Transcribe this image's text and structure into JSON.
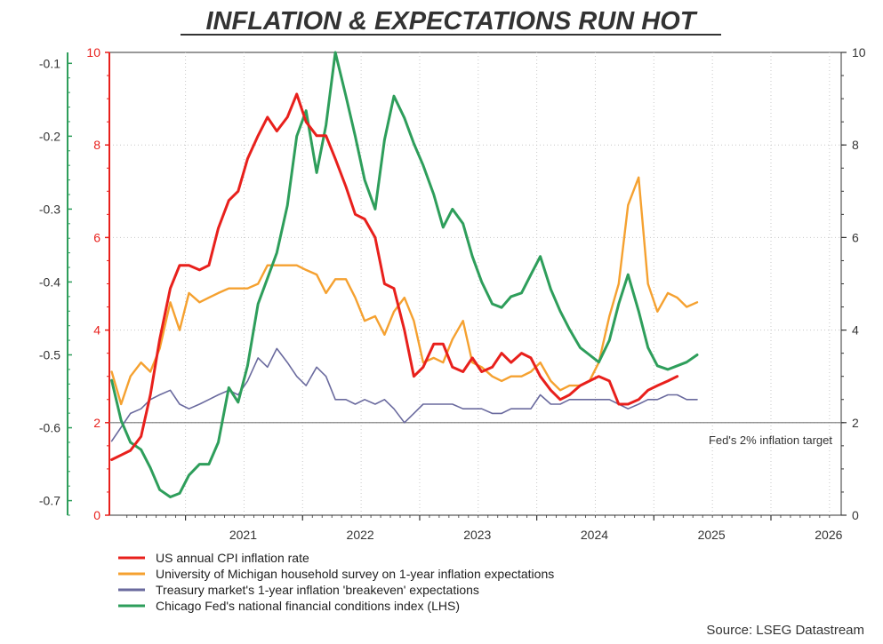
{
  "chart_data": {
    "type": "line",
    "title": "INFLATION & EXPECTATIONS RUN HOT",
    "source": "Source: LSEG Datastream",
    "annotation": "Fed's 2% inflation target",
    "target_line_value": 2,
    "grid": true,
    "legend_position": "bottom-left",
    "x_axis": {
      "range": [
        2020.35,
        2026.6
      ],
      "tick_labels": [
        "2021",
        "2022",
        "2023",
        "2024",
        "2025",
        "2026"
      ],
      "tick_values": [
        2021,
        2022,
        2023,
        2024,
        2025,
        2026
      ]
    },
    "y_left_red": {
      "range": [
        0,
        10
      ],
      "ticks": [
        0,
        2,
        4,
        6,
        8,
        10
      ],
      "color": "#e8201c"
    },
    "y_left_green": {
      "range": [
        -0.72,
        -0.085
      ],
      "ticks": [
        -0.7,
        -0.6,
        -0.5,
        -0.4,
        -0.3,
        -0.2,
        -0.1
      ],
      "tick_labels": [
        "-0.7",
        "-0.6",
        "-0.5",
        "-0.4",
        "-0.3",
        "-0.2",
        "-0.1"
      ],
      "color": "#2e9e5b"
    },
    "y_right": {
      "range": [
        0,
        10
      ],
      "ticks": [
        0,
        2,
        4,
        6,
        8,
        10
      ]
    },
    "series": [
      {
        "name": "US annual CPI inflation rate",
        "color": "#e8201c",
        "axis": "y_left_red",
        "points": [
          [
            2020.37,
            1.2
          ],
          [
            2020.45,
            1.3
          ],
          [
            2020.53,
            1.4
          ],
          [
            2020.62,
            1.7
          ],
          [
            2020.7,
            2.6
          ],
          [
            2020.78,
            3.8
          ],
          [
            2020.87,
            4.9
          ],
          [
            2020.95,
            5.4
          ],
          [
            2021.03,
            5.4
          ],
          [
            2021.12,
            5.3
          ],
          [
            2021.2,
            5.4
          ],
          [
            2021.28,
            6.2
          ],
          [
            2021.37,
            6.8
          ],
          [
            2021.45,
            7.0
          ],
          [
            2021.53,
            7.7
          ],
          [
            2021.62,
            8.2
          ],
          [
            2021.7,
            8.6
          ],
          [
            2021.78,
            8.3
          ],
          [
            2021.87,
            8.6
          ],
          [
            2021.95,
            9.1
          ],
          [
            2022.03,
            8.5
          ],
          [
            2022.12,
            8.2
          ],
          [
            2022.2,
            8.2
          ],
          [
            2022.28,
            7.7
          ],
          [
            2022.37,
            7.1
          ],
          [
            2022.45,
            6.5
          ],
          [
            2022.53,
            6.4
          ],
          [
            2022.62,
            6.0
          ],
          [
            2022.7,
            5.0
          ],
          [
            2022.78,
            4.9
          ],
          [
            2022.87,
            4.0
          ],
          [
            2022.95,
            3.0
          ],
          [
            2023.03,
            3.2
          ],
          [
            2023.12,
            3.7
          ],
          [
            2023.2,
            3.7
          ],
          [
            2023.28,
            3.2
          ],
          [
            2023.37,
            3.1
          ],
          [
            2023.45,
            3.4
          ],
          [
            2023.53,
            3.1
          ],
          [
            2023.62,
            3.2
          ],
          [
            2023.7,
            3.5
          ],
          [
            2023.78,
            3.3
          ],
          [
            2023.87,
            3.5
          ],
          [
            2023.95,
            3.4
          ],
          [
            2024.03,
            3.0
          ],
          [
            2024.12,
            2.7
          ],
          [
            2024.2,
            2.5
          ],
          [
            2024.28,
            2.6
          ],
          [
            2024.37,
            2.8
          ],
          [
            2024.45,
            2.9
          ],
          [
            2024.53,
            3.0
          ],
          [
            2024.62,
            2.9
          ],
          [
            2024.7,
            2.4
          ],
          [
            2024.78,
            2.4
          ],
          [
            2024.87,
            2.5
          ],
          [
            2024.95,
            2.7
          ],
          [
            2025.03,
            2.8
          ],
          [
            2025.12,
            2.9
          ],
          [
            2025.2,
            3.0
          ]
        ]
      },
      {
        "name": "University of Michigan household survey on 1-year inflation expectations",
        "color": "#f5a130",
        "axis": "y_left_red",
        "points": [
          [
            2020.37,
            3.1
          ],
          [
            2020.45,
            2.4
          ],
          [
            2020.53,
            3.0
          ],
          [
            2020.62,
            3.3
          ],
          [
            2020.7,
            3.1
          ],
          [
            2020.78,
            3.6
          ],
          [
            2020.87,
            4.6
          ],
          [
            2020.95,
            4.0
          ],
          [
            2021.03,
            4.8
          ],
          [
            2021.12,
            4.6
          ],
          [
            2021.2,
            4.7
          ],
          [
            2021.28,
            4.8
          ],
          [
            2021.37,
            4.9
          ],
          [
            2021.45,
            4.9
          ],
          [
            2021.53,
            4.9
          ],
          [
            2021.62,
            5.0
          ],
          [
            2021.7,
            5.4
          ],
          [
            2021.78,
            5.4
          ],
          [
            2021.87,
            5.4
          ],
          [
            2021.95,
            5.4
          ],
          [
            2022.03,
            5.3
          ],
          [
            2022.12,
            5.2
          ],
          [
            2022.2,
            4.8
          ],
          [
            2022.28,
            5.1
          ],
          [
            2022.37,
            5.1
          ],
          [
            2022.45,
            4.7
          ],
          [
            2022.53,
            4.2
          ],
          [
            2022.62,
            4.3
          ],
          [
            2022.7,
            3.9
          ],
          [
            2022.78,
            4.4
          ],
          [
            2022.87,
            4.7
          ],
          [
            2022.95,
            4.2
          ],
          [
            2023.03,
            3.3
          ],
          [
            2023.12,
            3.4
          ],
          [
            2023.2,
            3.3
          ],
          [
            2023.28,
            3.8
          ],
          [
            2023.37,
            4.2
          ],
          [
            2023.45,
            3.3
          ],
          [
            2023.53,
            3.2
          ],
          [
            2023.62,
            3.0
          ],
          [
            2023.7,
            2.9
          ],
          [
            2023.78,
            3.0
          ],
          [
            2023.87,
            3.0
          ],
          [
            2023.95,
            3.1
          ],
          [
            2024.03,
            3.3
          ],
          [
            2024.12,
            2.9
          ],
          [
            2024.2,
            2.7
          ],
          [
            2024.28,
            2.8
          ],
          [
            2024.37,
            2.8
          ],
          [
            2024.45,
            2.9
          ],
          [
            2024.53,
            3.3
          ],
          [
            2024.62,
            4.3
          ],
          [
            2024.7,
            5.0
          ],
          [
            2024.78,
            6.7
          ],
          [
            2024.87,
            7.3
          ],
          [
            2024.95,
            5.0
          ],
          [
            2025.03,
            4.4
          ],
          [
            2025.12,
            4.8
          ],
          [
            2025.2,
            4.7
          ],
          [
            2025.28,
            4.5
          ],
          [
            2025.37,
            4.6
          ]
        ]
      },
      {
        "name": "Treasury market's 1-year inflation 'breakeven' expectations",
        "color": "#6a6a9e",
        "axis": "y_right",
        "points": [
          [
            2020.37,
            1.6
          ],
          [
            2020.45,
            1.9
          ],
          [
            2020.53,
            2.2
          ],
          [
            2020.62,
            2.3
          ],
          [
            2020.7,
            2.5
          ],
          [
            2020.78,
            2.6
          ],
          [
            2020.87,
            2.7
          ],
          [
            2020.95,
            2.4
          ],
          [
            2021.03,
            2.3
          ],
          [
            2021.12,
            2.4
          ],
          [
            2021.2,
            2.5
          ],
          [
            2021.28,
            2.6
          ],
          [
            2021.37,
            2.7
          ],
          [
            2021.45,
            2.6
          ],
          [
            2021.53,
            2.9
          ],
          [
            2021.62,
            3.4
          ],
          [
            2021.7,
            3.2
          ],
          [
            2021.78,
            3.6
          ],
          [
            2021.87,
            3.3
          ],
          [
            2021.95,
            3.0
          ],
          [
            2022.03,
            2.8
          ],
          [
            2022.12,
            3.2
          ],
          [
            2022.2,
            3.0
          ],
          [
            2022.28,
            2.5
          ],
          [
            2022.37,
            2.5
          ],
          [
            2022.45,
            2.4
          ],
          [
            2022.53,
            2.5
          ],
          [
            2022.62,
            2.4
          ],
          [
            2022.7,
            2.5
          ],
          [
            2022.78,
            2.3
          ],
          [
            2022.87,
            2.0
          ],
          [
            2022.95,
            2.2
          ],
          [
            2023.03,
            2.4
          ],
          [
            2023.12,
            2.4
          ],
          [
            2023.2,
            2.4
          ],
          [
            2023.28,
            2.4
          ],
          [
            2023.37,
            2.3
          ],
          [
            2023.45,
            2.3
          ],
          [
            2023.53,
            2.3
          ],
          [
            2023.62,
            2.2
          ],
          [
            2023.7,
            2.2
          ],
          [
            2023.78,
            2.3
          ],
          [
            2023.87,
            2.3
          ],
          [
            2023.95,
            2.3
          ],
          [
            2024.03,
            2.6
          ],
          [
            2024.12,
            2.4
          ],
          [
            2024.2,
            2.4
          ],
          [
            2024.28,
            2.5
          ],
          [
            2024.37,
            2.5
          ],
          [
            2024.45,
            2.5
          ],
          [
            2024.53,
            2.5
          ],
          [
            2024.62,
            2.5
          ],
          [
            2024.7,
            2.4
          ],
          [
            2024.78,
            2.3
          ],
          [
            2024.87,
            2.4
          ],
          [
            2024.95,
            2.5
          ],
          [
            2025.03,
            2.5
          ],
          [
            2025.12,
            2.6
          ],
          [
            2025.2,
            2.6
          ],
          [
            2025.28,
            2.5
          ],
          [
            2025.37,
            2.5
          ]
        ]
      },
      {
        "name": "Chicago Fed's national financial conditions index (LHS)",
        "color": "#2e9e5b",
        "axis": "y_left_green",
        "points": [
          [
            2020.37,
            -0.535
          ],
          [
            2020.45,
            -0.59
          ],
          [
            2020.53,
            -0.62
          ],
          [
            2020.62,
            -0.63
          ],
          [
            2020.7,
            -0.655
          ],
          [
            2020.78,
            -0.685
          ],
          [
            2020.87,
            -0.695
          ],
          [
            2020.95,
            -0.69
          ],
          [
            2021.03,
            -0.665
          ],
          [
            2021.12,
            -0.65
          ],
          [
            2021.2,
            -0.65
          ],
          [
            2021.28,
            -0.62
          ],
          [
            2021.37,
            -0.545
          ],
          [
            2021.45,
            -0.565
          ],
          [
            2021.53,
            -0.515
          ],
          [
            2021.62,
            -0.43
          ],
          [
            2021.7,
            -0.395
          ],
          [
            2021.78,
            -0.36
          ],
          [
            2021.87,
            -0.295
          ],
          [
            2021.95,
            -0.2
          ],
          [
            2022.03,
            -0.165
          ],
          [
            2022.12,
            -0.25
          ],
          [
            2022.2,
            -0.185
          ],
          [
            2022.28,
            -0.085
          ],
          [
            2022.37,
            -0.145
          ],
          [
            2022.45,
            -0.2
          ],
          [
            2022.53,
            -0.26
          ],
          [
            2022.62,
            -0.3
          ],
          [
            2022.7,
            -0.205
          ],
          [
            2022.78,
            -0.145
          ],
          [
            2022.87,
            -0.175
          ],
          [
            2022.95,
            -0.21
          ],
          [
            2023.03,
            -0.24
          ],
          [
            2023.12,
            -0.28
          ],
          [
            2023.2,
            -0.325
          ],
          [
            2023.28,
            -0.3
          ],
          [
            2023.37,
            -0.32
          ],
          [
            2023.45,
            -0.365
          ],
          [
            2023.53,
            -0.4
          ],
          [
            2023.62,
            -0.43
          ],
          [
            2023.7,
            -0.435
          ],
          [
            2023.78,
            -0.42
          ],
          [
            2023.87,
            -0.415
          ],
          [
            2023.95,
            -0.39
          ],
          [
            2024.03,
            -0.365
          ],
          [
            2024.12,
            -0.41
          ],
          [
            2024.2,
            -0.44
          ],
          [
            2024.28,
            -0.465
          ],
          [
            2024.37,
            -0.49
          ],
          [
            2024.45,
            -0.5
          ],
          [
            2024.53,
            -0.51
          ],
          [
            2024.62,
            -0.48
          ],
          [
            2024.7,
            -0.43
          ],
          [
            2024.78,
            -0.39
          ],
          [
            2024.87,
            -0.44
          ],
          [
            2024.95,
            -0.49
          ],
          [
            2025.03,
            -0.515
          ],
          [
            2025.12,
            -0.52
          ],
          [
            2025.2,
            -0.515
          ],
          [
            2025.28,
            -0.51
          ],
          [
            2025.37,
            -0.5
          ]
        ]
      }
    ]
  }
}
